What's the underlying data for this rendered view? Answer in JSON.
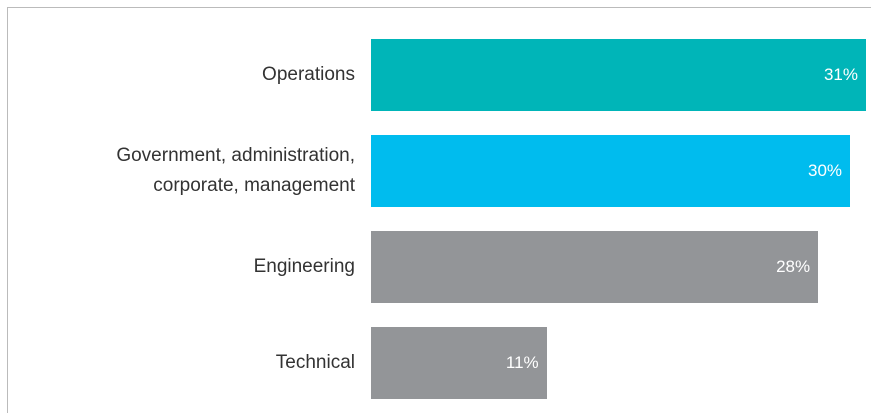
{
  "chart_data": {
    "type": "bar",
    "orientation": "horizontal",
    "categories": [
      "Operations",
      "Government, administration, corporate, management",
      "Engineering",
      "Technical"
    ],
    "values": [
      31,
      30,
      28,
      11
    ],
    "value_labels": [
      "31%",
      "30%",
      "28%",
      "11%"
    ],
    "colors": [
      "#00b5b8",
      "#00bcee",
      "#939598",
      "#939598"
    ]
  }
}
